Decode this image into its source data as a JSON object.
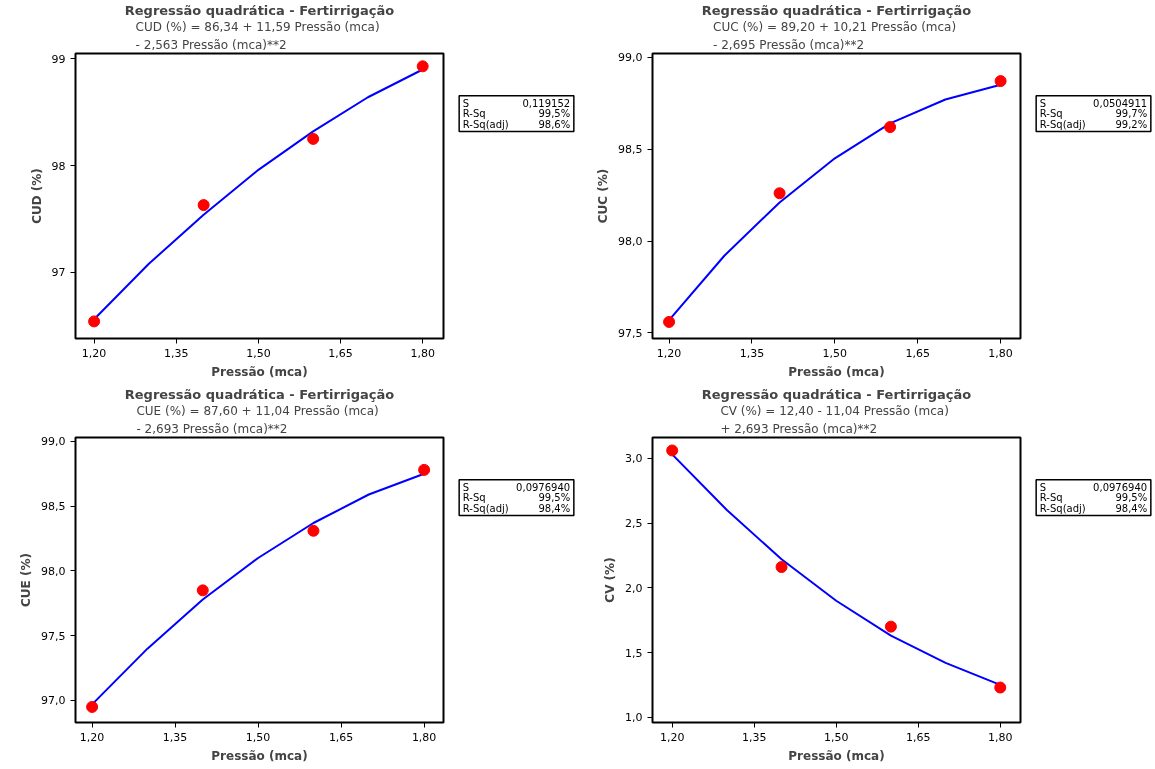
{
  "chart_data": [
    {
      "type": "scatter",
      "title": "Regressão quadrática - Fertirrigação",
      "subtitle": "CUD (%) =  86,34 + 11,59 Pressão (mca)\n- 2,563 Pressão (mca)**2",
      "xlabel": "Pressão (mca)",
      "ylabel": "CUD (%)",
      "xlim": [
        1.166,
        1.838
      ],
      "ylim": [
        96.38,
        99.05
      ],
      "xticks": [
        {
          "value": 1.2,
          "label": "1,20"
        },
        {
          "value": 1.35,
          "label": "1,35"
        },
        {
          "value": 1.5,
          "label": "1,50"
        },
        {
          "value": 1.65,
          "label": "1,65"
        },
        {
          "value": 1.8,
          "label": "1,80"
        }
      ],
      "yticks": [
        97,
        98,
        99
      ],
      "series": [
        {
          "color": "#ff0000",
          "marker": "circle",
          "x": [
            1.2,
            1.4,
            1.6,
            1.8
          ],
          "values": [
            96.54,
            97.63,
            98.25,
            98.93
          ]
        },
        {
          "type": "line",
          "color": "#0000ff",
          "x": [
            1.2,
            1.3,
            1.4,
            1.5,
            1.6,
            1.7,
            1.8
          ],
          "values": [
            96.56,
            97.08,
            97.54,
            97.96,
            98.32,
            98.64,
            98.9
          ]
        }
      ],
      "annotations": [
        "S",
        "0,119152",
        "R-Sq",
        "99,5%",
        "R-Sq(adj)",
        "98,6%"
      ]
    },
    {
      "type": "scatter",
      "title": "Regressão quadrática - Fertirrigação",
      "subtitle": "CUC (%) =  89,20 + 10,21 Pressão (mca)\n- 2,695 Pressão (mca)**2",
      "xlabel": "Pressão (mca)",
      "ylabel": "CUC (%)",
      "xlim": [
        1.17,
        1.836
      ],
      "ylim": [
        97.47,
        99.02
      ],
      "xticks": [
        {
          "value": 1.2,
          "label": "1,20"
        },
        {
          "value": 1.35,
          "label": "1,35"
        },
        {
          "value": 1.5,
          "label": "1,50"
        },
        {
          "value": 1.65,
          "label": "1,65"
        },
        {
          "value": 1.8,
          "label": "1,80"
        }
      ],
      "yticks": [
        {
          "value": 97.5,
          "label": "97,5"
        },
        {
          "value": 98.0,
          "label": "98,0"
        },
        {
          "value": 98.5,
          "label": "98,5"
        },
        {
          "value": 99.0,
          "label": "99,0"
        }
      ],
      "series": [
        {
          "color": "#ff0000",
          "marker": "circle",
          "x": [
            1.2,
            1.4,
            1.6,
            1.8
          ],
          "values": [
            97.56,
            98.26,
            98.62,
            98.87
          ]
        },
        {
          "type": "line",
          "color": "#0000ff",
          "x": [
            1.2,
            1.3,
            1.4,
            1.5,
            1.6,
            1.7,
            1.8
          ],
          "values": [
            97.57,
            97.92,
            98.21,
            98.45,
            98.64,
            98.77,
            98.85
          ]
        }
      ],
      "annotations": [
        "S",
        "0,0504911",
        "R-Sq",
        "99,7%",
        "R-Sq(adj)",
        "99,2%"
      ]
    },
    {
      "type": "scatter",
      "title": "Regressão quadrática - Fertirrigação",
      "subtitle": "CUE (%) =  87,60 + 11,04 Pressão (mca)\n- 2,693 Pressão (mca)**2",
      "xlabel": "Pressão (mca)",
      "ylabel": "CUE (%)",
      "xlim": [
        1.17,
        1.835
      ],
      "ylim": [
        96.83,
        99.03
      ],
      "xticks": [
        {
          "value": 1.2,
          "label": "1,20"
        },
        {
          "value": 1.35,
          "label": "1,35"
        },
        {
          "value": 1.5,
          "label": "1,50"
        },
        {
          "value": 1.65,
          "label": "1,65"
        },
        {
          "value": 1.8,
          "label": "1,80"
        }
      ],
      "yticks": [
        {
          "value": 97.0,
          "label": "97,0"
        },
        {
          "value": 97.5,
          "label": "97,5"
        },
        {
          "value": 98.0,
          "label": "98,0"
        },
        {
          "value": 98.5,
          "label": "98,5"
        },
        {
          "value": 99.0,
          "label": "99,0"
        }
      ],
      "series": [
        {
          "color": "#ff0000",
          "marker": "circle",
          "x": [
            1.2,
            1.4,
            1.6,
            1.8
          ],
          "values": [
            96.95,
            97.85,
            98.31,
            98.78
          ]
        },
        {
          "type": "line",
          "color": "#0000ff",
          "x": [
            1.2,
            1.3,
            1.4,
            1.5,
            1.6,
            1.7,
            1.8
          ],
          "values": [
            96.97,
            97.4,
            97.78,
            98.1,
            98.37,
            98.59,
            98.75
          ]
        }
      ],
      "annotations": [
        "S",
        "0,0976940",
        "R-Sq",
        "99,5%",
        "R-Sq(adj)",
        "98,4%"
      ]
    },
    {
      "type": "scatter",
      "title": "Regressão quadrática - Fertirrigação",
      "subtitle": "CV (%) =  12,40 - 11,04 Pressão (mca)\n+ 2,693 Pressão (mca)**2",
      "xlabel": "Pressão (mca)",
      "ylabel": "CV (%)",
      "xlim": [
        1.164,
        1.837
      ],
      "ylim": [
        0.96,
        3.16
      ],
      "xticks": [
        {
          "value": 1.2,
          "label": "1,20"
        },
        {
          "value": 1.35,
          "label": "1,35"
        },
        {
          "value": 1.5,
          "label": "1,50"
        },
        {
          "value": 1.65,
          "label": "1,65"
        },
        {
          "value": 1.8,
          "label": "1,80"
        }
      ],
      "yticks": [
        {
          "value": 1.0,
          "label": "1,0"
        },
        {
          "value": 1.5,
          "label": "1,5"
        },
        {
          "value": 2.0,
          "label": "2,0"
        },
        {
          "value": 2.5,
          "label": "2,5"
        },
        {
          "value": 3.0,
          "label": "3,0"
        }
      ],
      "series": [
        {
          "color": "#ff0000",
          "marker": "circle",
          "x": [
            1.2,
            1.4,
            1.6,
            1.8
          ],
          "values": [
            3.06,
            2.16,
            1.7,
            1.23
          ]
        },
        {
          "type": "line",
          "color": "#0000ff",
          "x": [
            1.2,
            1.3,
            1.4,
            1.5,
            1.6,
            1.7,
            1.8
          ],
          "values": [
            3.03,
            2.6,
            2.22,
            1.9,
            1.63,
            1.42,
            1.25
          ]
        }
      ],
      "annotations": [
        "S",
        "0,0976940",
        "R-Sq",
        "99,5%",
        "R-Sq(adj)",
        "98,4%"
      ]
    }
  ]
}
